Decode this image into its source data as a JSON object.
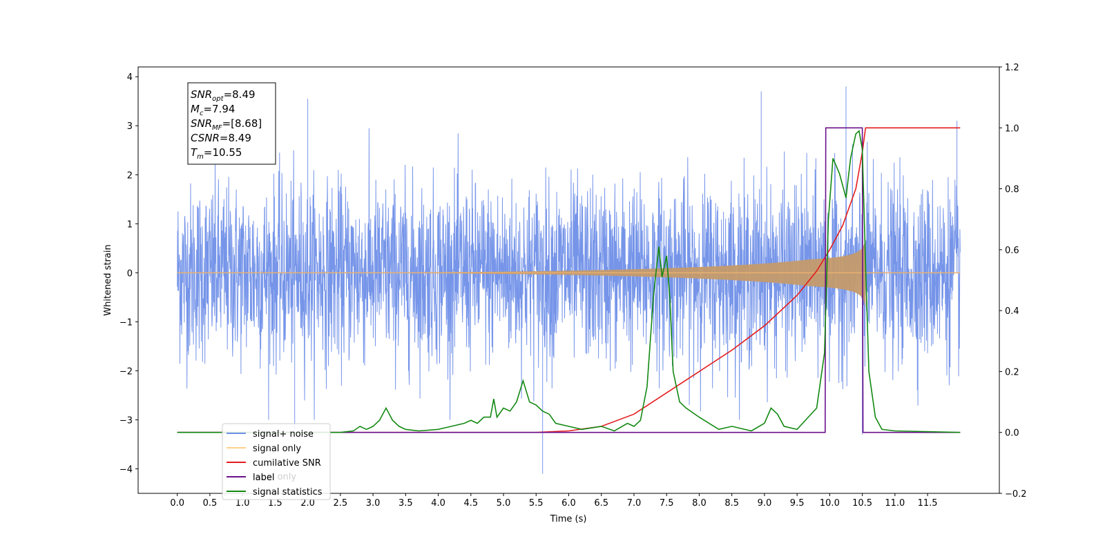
{
  "chart_data": {
    "type": "line",
    "xlabel": "Time (s)",
    "ylabel": "Whitened strain",
    "xlim": [
      -0.6,
      12.6
    ],
    "ylim_left": [
      -4.5,
      4.2
    ],
    "ylim_right": [
      -0.2,
      1.2
    ],
    "x_ticks": [
      "0.0",
      "0.5",
      "1.0",
      "1.5",
      "2.0",
      "2.5",
      "3.0",
      "3.5",
      "4.0",
      "4.5",
      "5.0",
      "5.5",
      "6.0",
      "6.5",
      "7.0",
      "7.5",
      "8.0",
      "8.5",
      "9.0",
      "9.5",
      "10.0",
      "10.5",
      "11.0",
      "11.5"
    ],
    "y_ticks_left": [
      "4",
      "3",
      "2",
      "1",
      "0",
      "−1",
      "−2",
      "−3",
      "−4"
    ],
    "y_ticks_right": [
      "1.2",
      "1.0",
      "0.8",
      "0.6",
      "0.4",
      "0.2",
      "0.0",
      "−0.2"
    ],
    "info_box": [
      {
        "base": "SNR",
        "sub": "opt",
        "value": "=8.49"
      },
      {
        "base": "M",
        "sub": "c",
        "value": "=7.94"
      },
      {
        "base": "SNR",
        "sub": "MF",
        "value": "=[8.68]"
      },
      {
        "base": "CSNR",
        "sub": "",
        "value": "=8.49"
      },
      {
        "base": "T",
        "sub": "m",
        "value": "=10.55"
      }
    ],
    "legend": [
      "signal+ noise",
      "signal only",
      "cumilative SNR",
      "label",
      "signal statistics"
    ],
    "legend_placement": "lower-left",
    "legend_occluded_text": "label only",
    "series": [
      {
        "name": "signal+ noise",
        "axis": "left",
        "color": "#6f8fe8",
        "kind": "noise",
        "x_range": [
          0.0,
          12.0
        ],
        "sigma": 0.9,
        "spikes": [
          [
            1.8,
            -3.2
          ],
          [
            2.0,
            3.55
          ],
          [
            5.6,
            -4.1
          ],
          [
            8.95,
            3.7
          ],
          [
            10.25,
            3.8
          ],
          [
            10.5,
            -3.3
          ],
          [
            11.95,
            3.1
          ]
        ]
      },
      {
        "name": "signal only",
        "axis": "left",
        "color": "#c49a6c",
        "kind": "chirp",
        "x_range": [
          0.0,
          10.55
        ],
        "merger_amplitude": 0.7
      },
      {
        "name": "cumilative SNR",
        "axis": "right",
        "color": "#e41a1c",
        "x": [
          0.0,
          5.5,
          6.0,
          6.5,
          7.0,
          7.5,
          8.0,
          8.5,
          9.0,
          9.5,
          9.8,
          10.0,
          10.2,
          10.4,
          10.5,
          10.55,
          12.0
        ],
        "y": [
          0.0,
          0.0,
          0.005,
          0.02,
          0.06,
          0.13,
          0.2,
          0.27,
          0.35,
          0.45,
          0.53,
          0.6,
          0.68,
          0.8,
          0.92,
          1.0,
          1.0
        ]
      },
      {
        "name": "label",
        "axis": "right",
        "color": "#6a0f8a",
        "x": [
          0.0,
          9.93,
          9.94,
          10.5,
          10.51,
          12.0
        ],
        "y": [
          0.0,
          0.0,
          1.0,
          1.0,
          0.0,
          0.0
        ]
      },
      {
        "name": "signal statistics",
        "axis": "right",
        "color": "#118811",
        "x": [
          0.0,
          2.5,
          2.7,
          2.8,
          2.9,
          3.0,
          3.1,
          3.2,
          3.3,
          3.4,
          3.5,
          3.7,
          4.0,
          4.2,
          4.4,
          4.5,
          4.6,
          4.7,
          4.8,
          4.85,
          4.9,
          5.0,
          5.1,
          5.2,
          5.3,
          5.4,
          5.5,
          5.6,
          5.7,
          5.8,
          6.0,
          6.2,
          6.5,
          6.7,
          6.9,
          7.0,
          7.1,
          7.2,
          7.25,
          7.3,
          7.38,
          7.43,
          7.5,
          7.55,
          7.6,
          7.7,
          7.8,
          8.0,
          8.3,
          8.5,
          8.8,
          9.0,
          9.1,
          9.2,
          9.3,
          9.5,
          9.8,
          9.92,
          9.98,
          10.05,
          10.15,
          10.25,
          10.32,
          10.4,
          10.45,
          10.5,
          10.55,
          10.6,
          10.7,
          10.8,
          11.0,
          12.0
        ],
        "y": [
          0.0,
          0.0,
          0.005,
          0.02,
          0.01,
          0.02,
          0.04,
          0.08,
          0.04,
          0.02,
          0.01,
          0.005,
          0.01,
          0.02,
          0.03,
          0.04,
          0.03,
          0.05,
          0.05,
          0.11,
          0.05,
          0.08,
          0.07,
          0.1,
          0.17,
          0.1,
          0.09,
          0.07,
          0.06,
          0.03,
          0.02,
          0.01,
          0.02,
          0.005,
          0.03,
          0.02,
          0.04,
          0.15,
          0.3,
          0.45,
          0.61,
          0.51,
          0.58,
          0.44,
          0.2,
          0.1,
          0.08,
          0.05,
          0.01,
          0.02,
          0.005,
          0.03,
          0.08,
          0.06,
          0.02,
          0.01,
          0.08,
          0.26,
          0.7,
          0.9,
          0.85,
          0.77,
          0.9,
          0.98,
          0.99,
          0.93,
          0.55,
          0.2,
          0.05,
          0.01,
          0.005,
          0.0
        ]
      }
    ]
  }
}
